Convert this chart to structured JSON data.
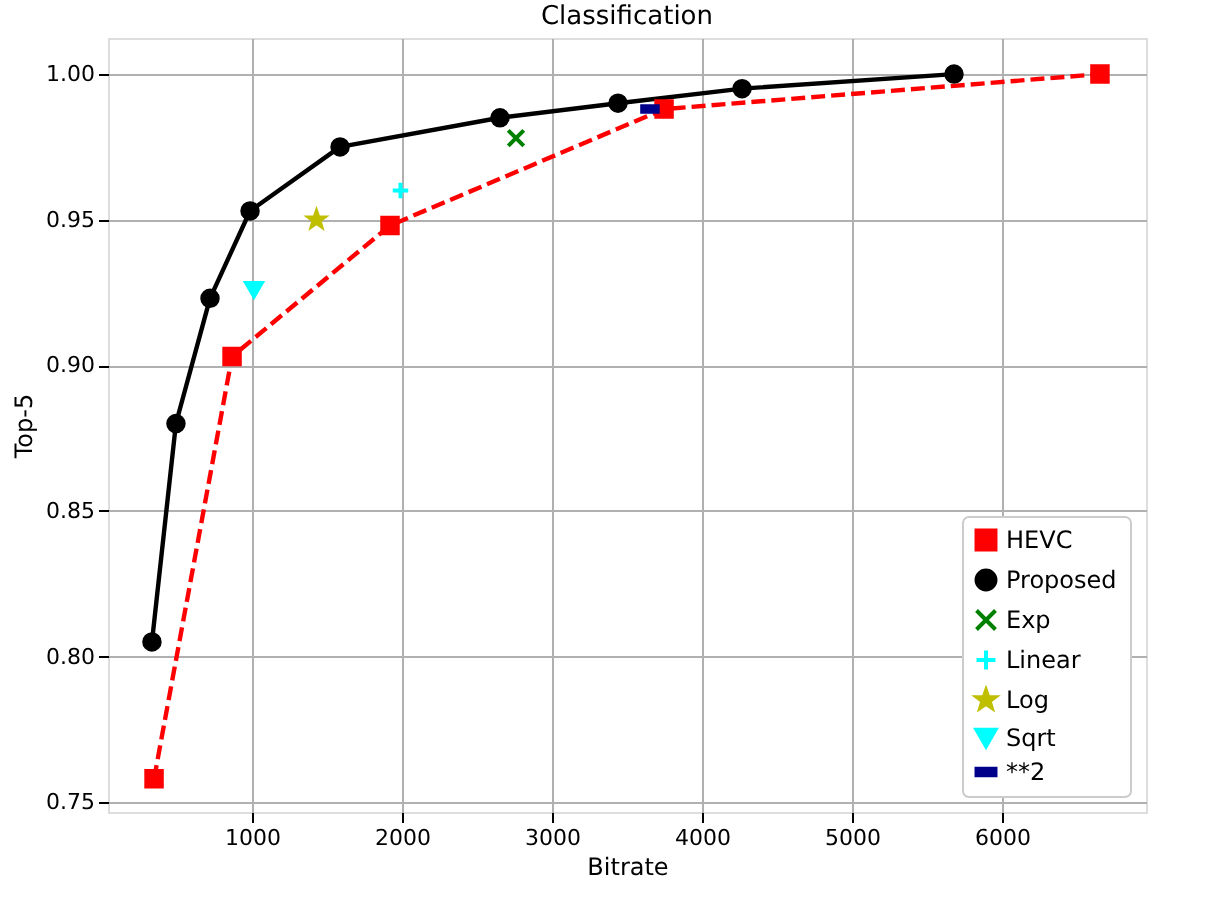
{
  "chart_data": {
    "type": "line",
    "title": "Classification",
    "xlabel": "Bitrate",
    "ylabel": "Top-5",
    "xlim": [
      40,
      6960
    ],
    "ylim": [
      0.7466,
      1.0124
    ],
    "xticks": [
      1000,
      2000,
      3000,
      4000,
      5000,
      6000
    ],
    "yticks": [
      {
        "value": 0.75,
        "label": "0.75"
      },
      {
        "value": 0.8,
        "label": "0.80"
      },
      {
        "value": 0.85,
        "label": "0.85"
      },
      {
        "value": 0.9,
        "label": "0.90"
      },
      {
        "value": 0.95,
        "label": "0.95"
      },
      {
        "value": 1.0,
        "label": "1.00"
      }
    ],
    "grid": true,
    "legend": "bottom right",
    "series": [
      {
        "name": "HEVC",
        "color": "#ff0000",
        "marker": "square",
        "line_style": "dashed",
        "x": [
          347,
          867,
          1920,
          3747,
          6653
        ],
        "values": [
          0.758,
          0.903,
          0.948,
          0.988,
          1.0
        ]
      },
      {
        "name": "Proposed",
        "color": "#000000",
        "marker": "circle",
        "line_style": "solid",
        "x": [
          333,
          493,
          720,
          987,
          1587,
          2653,
          3440,
          4267,
          5680
        ],
        "values": [
          0.805,
          0.88,
          0.923,
          0.953,
          0.975,
          0.985,
          0.99,
          0.995,
          1.0
        ]
      },
      {
        "name": "Exp",
        "type": "scatter",
        "color": "#008000",
        "marker": "x",
        "x": [
          2760
        ],
        "values": [
          0.978
        ]
      },
      {
        "name": "Linear",
        "type": "scatter",
        "color": "#00ffff",
        "marker": "plus",
        "x": [
          1990
        ],
        "values": [
          0.96
        ]
      },
      {
        "name": "Log",
        "type": "scatter",
        "color": "#bfbf00",
        "marker": "star",
        "x": [
          1430
        ],
        "values": [
          0.95
        ]
      },
      {
        "name": "Sqrt",
        "type": "scatter",
        "color": "#00ffff",
        "marker": "triangle",
        "x": [
          1013
        ],
        "values": [
          0.926
        ]
      },
      {
        "name": "**2",
        "type": "scatter",
        "color": "#00008b",
        "x": [
          3653
        ],
        "values": [
          0.988
        ]
      }
    ]
  }
}
